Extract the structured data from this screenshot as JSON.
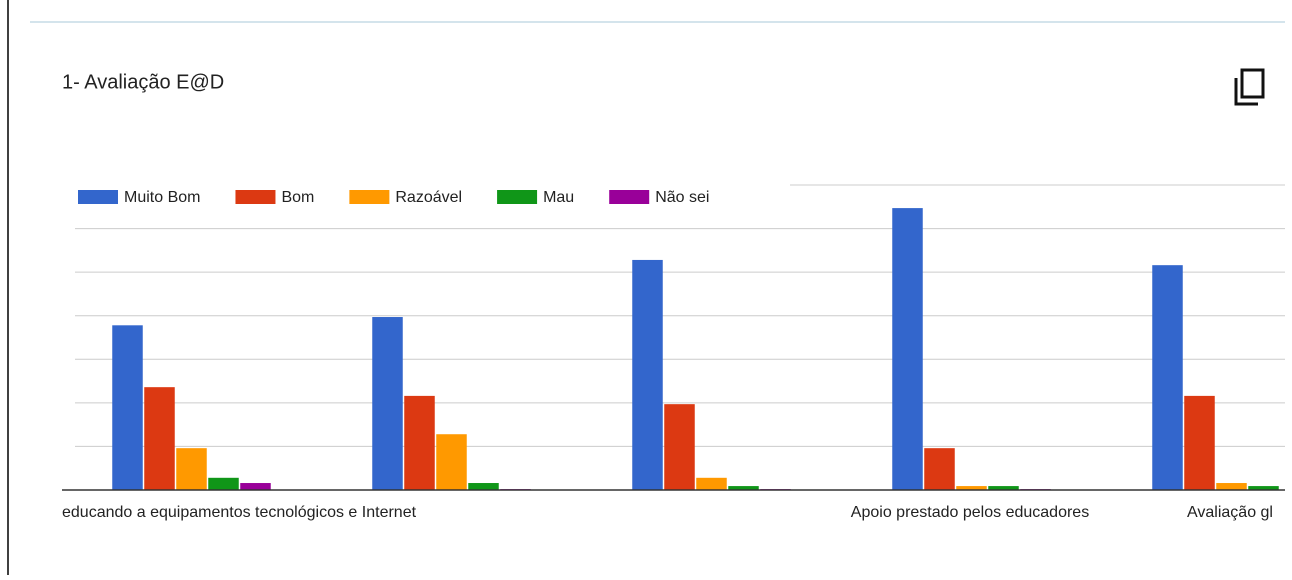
{
  "chart_data": {
    "type": "bar",
    "title": "1- Avaliação E@D",
    "categories": [
      "educando a equipamentos tecnológicos e Internet",
      null,
      null,
      "Apoio prestado pelos educadores",
      "Avaliação gl"
    ],
    "series": [
      {
        "name": "Muito Bom",
        "color": "#3366cc",
        "values": [
          3.78,
          3.97,
          5.28,
          6.47,
          5.16
        ]
      },
      {
        "name": "Bom",
        "color": "#dc3912",
        "values": [
          2.36,
          2.16,
          1.97,
          0.96,
          2.16
        ]
      },
      {
        "name": "Razoável",
        "color": "#ff9900",
        "values": [
          0.96,
          1.28,
          0.28,
          0.09,
          0.16
        ]
      },
      {
        "name": "Mau",
        "color": "#109618",
        "values": [
          0.28,
          0.16,
          0.09,
          0.09,
          0.09
        ]
      },
      {
        "name": "Não sei",
        "color": "#990099",
        "values": [
          0.16,
          0.02,
          0.02,
          0.02,
          null
        ]
      }
    ],
    "ylim": [
      0,
      7
    ],
    "gridlines": [
      1,
      2,
      3,
      4,
      5,
      6,
      7
    ],
    "grid": true
  }
}
